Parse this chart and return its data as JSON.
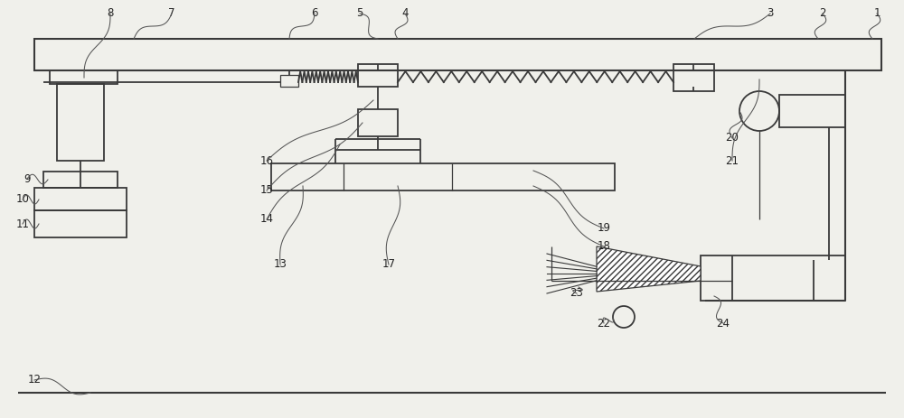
{
  "bg_color": "#f0f0eb",
  "line_color": "#3a3a3a",
  "label_color": "#222222",
  "fig_width": 10.0,
  "fig_height": 4.63
}
